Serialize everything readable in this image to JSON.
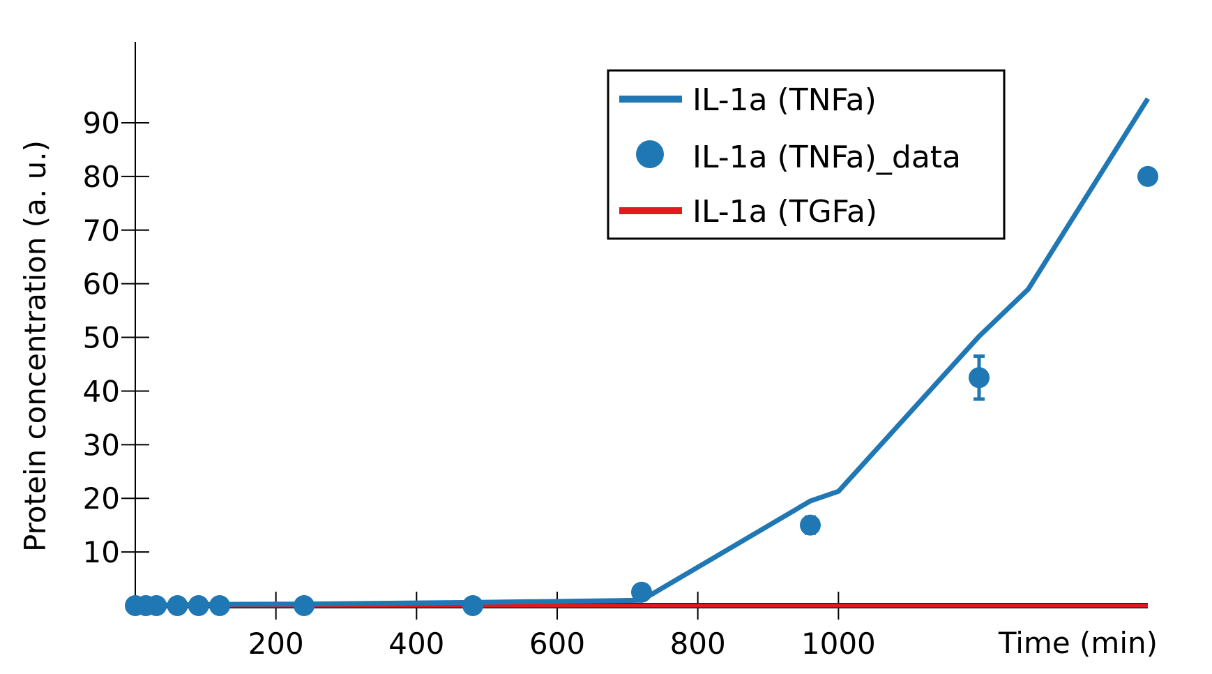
{
  "chart_data": {
    "type": "line",
    "title": "",
    "xlabel": "Time (min)",
    "ylabel": "Protein concentration (a. u.)",
    "xlim": [
      0,
      1440
    ],
    "ylim": [
      0,
      100
    ],
    "x_ticks": [
      200,
      400,
      600,
      800,
      1000
    ],
    "y_ticks": [
      10,
      20,
      30,
      40,
      50,
      60,
      70,
      80,
      90
    ],
    "legend_position": "top-right",
    "grid": false,
    "series": [
      {
        "name": "IL-1a (TNFa)",
        "kind": "line",
        "color": "#1f77b4",
        "x": [
          0,
          15,
          30,
          60,
          90,
          120,
          240,
          480,
          720,
          960,
          1000,
          1200,
          1270,
          1440
        ],
        "y": [
          0,
          0.05,
          0.1,
          0.15,
          0.2,
          0.25,
          0.3,
          0.6,
          1.0,
          19.5,
          21.3,
          50.2,
          59.0,
          94.5
        ]
      },
      {
        "name": "IL-1a (TNFa)_data",
        "kind": "scatter",
        "color": "#1f77b4",
        "x": [
          0,
          15,
          30,
          60,
          90,
          120,
          240,
          480,
          720,
          960,
          1200,
          1440
        ],
        "y": [
          0,
          0,
          0,
          0,
          0,
          0,
          0,
          0,
          2.5,
          15.0,
          42.5,
          80.0
        ],
        "err": [
          0,
          0,
          0,
          0,
          0,
          0,
          0,
          0,
          0,
          1.5,
          4.0,
          0
        ]
      },
      {
        "name": "IL-1a (TGFa)",
        "kind": "line",
        "color": "#e31a1c",
        "x": [
          0,
          1440
        ],
        "y": [
          0,
          0
        ]
      }
    ]
  }
}
